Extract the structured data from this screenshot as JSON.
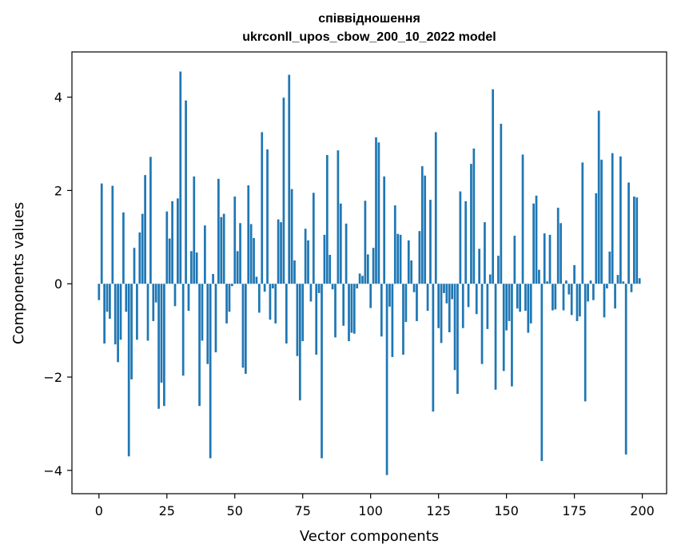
{
  "chart_data": {
    "type": "bar",
    "title_line1": "співвідношення",
    "title_line2": "ukrconll_upos_cbow_200_10_2022 model",
    "xlabel": "Vector components",
    "ylabel": "Components values",
    "xlim": [
      -9.95,
      208.95
    ],
    "ylim": [
      -4.5,
      4.97
    ],
    "xticks": [
      0,
      25,
      50,
      75,
      100,
      125,
      150,
      175,
      200
    ],
    "xtick_labels": [
      "0",
      "25",
      "50",
      "75",
      "100",
      "125",
      "150",
      "175",
      "200"
    ],
    "yticks": [
      -4,
      -2,
      0,
      2,
      4
    ],
    "ytick_labels": [
      "−4",
      "−2",
      "0",
      "2",
      "4"
    ],
    "bar_color": "#1f77b4",
    "x": [
      0,
      1,
      2,
      3,
      4,
      5,
      6,
      7,
      8,
      9,
      10,
      11,
      12,
      13,
      14,
      15,
      16,
      17,
      18,
      19,
      20,
      21,
      22,
      23,
      24,
      25,
      26,
      27,
      28,
      29,
      30,
      31,
      32,
      33,
      34,
      35,
      36,
      37,
      38,
      39,
      40,
      41,
      42,
      43,
      44,
      45,
      46,
      47,
      48,
      49,
      50,
      51,
      52,
      53,
      54,
      55,
      56,
      57,
      58,
      59,
      60,
      61,
      62,
      63,
      64,
      65,
      66,
      67,
      68,
      69,
      70,
      71,
      72,
      73,
      74,
      75,
      76,
      77,
      78,
      79,
      80,
      81,
      82,
      83,
      84,
      85,
      86,
      87,
      88,
      89,
      90,
      91,
      92,
      93,
      94,
      95,
      96,
      97,
      98,
      99,
      100,
      101,
      102,
      103,
      104,
      105,
      106,
      107,
      108,
      109,
      110,
      111,
      112,
      113,
      114,
      115,
      116,
      117,
      118,
      119,
      120,
      121,
      122,
      123,
      124,
      125,
      126,
      127,
      128,
      129,
      130,
      131,
      132,
      133,
      134,
      135,
      136,
      137,
      138,
      139,
      140,
      141,
      142,
      143,
      144,
      145,
      146,
      147,
      148,
      149,
      150,
      151,
      152,
      153,
      154,
      155,
      156,
      157,
      158,
      159,
      160,
      161,
      162,
      163,
      164,
      165,
      166,
      167,
      168,
      169,
      170,
      171,
      172,
      173,
      174,
      175,
      176,
      177,
      178,
      179,
      180,
      181,
      182,
      183,
      184,
      185,
      186,
      187,
      188,
      189,
      190,
      191,
      192,
      193,
      194,
      195,
      196,
      197,
      198,
      199
    ],
    "values": [
      -0.35,
      2.15,
      -1.28,
      -0.6,
      -0.75,
      2.1,
      -1.3,
      -1.68,
      -1.2,
      1.53,
      -0.6,
      -3.7,
      -2.05,
      0.77,
      -1.2,
      1.1,
      1.5,
      2.33,
      -1.22,
      2.72,
      -0.8,
      -0.4,
      -2.68,
      -2.12,
      -2.62,
      1.55,
      0.97,
      1.77,
      -0.48,
      1.83,
      4.55,
      -1.97,
      3.93,
      -0.58,
      0.7,
      2.3,
      0.67,
      -2.62,
      -1.22,
      1.25,
      -1.72,
      -3.74,
      0.21,
      -1.47,
      2.25,
      1.43,
      1.5,
      -0.85,
      -0.6,
      -0.05,
      1.87,
      0.7,
      1.3,
      -1.8,
      -1.93,
      2.11,
      1.28,
      0.98,
      0.15,
      -0.62,
      3.25,
      -0.17,
      2.88,
      -0.77,
      -0.1,
      -0.85,
      1.38,
      1.32,
      3.99,
      -1.28,
      4.48,
      2.03,
      0.5,
      -1.55,
      -2.5,
      -1.23,
      1.18,
      0.93,
      -0.38,
      1.95,
      -1.52,
      -0.2,
      -3.74,
      1.05,
      2.76,
      0.62,
      -0.12,
      -1.15,
      2.86,
      1.72,
      -0.9,
      1.29,
      -1.23,
      -1.05,
      -1.07,
      -0.1,
      0.22,
      0.17,
      1.78,
      0.63,
      -0.52,
      0.77,
      3.14,
      3.03,
      -1.13,
      2.3,
      -4.1,
      -0.49,
      -1.57,
      1.68,
      1.07,
      1.05,
      -1.52,
      -0.82,
      0.93,
      0.5,
      -0.18,
      -0.8,
      1.13,
      2.52,
      2.32,
      -0.58,
      1.8,
      -2.74,
      3.25,
      -0.95,
      -1.27,
      -0.2,
      -0.42,
      -1.04,
      -0.33,
      -1.85,
      -2.36,
      1.98,
      -0.95,
      1.77,
      -0.5,
      2.57,
      2.9,
      -0.65,
      0.75,
      -1.72,
      1.32,
      -0.97,
      0.2,
      4.17,
      -2.27,
      0.6,
      3.43,
      -1.87,
      -1.0,
      -0.8,
      -2.2,
      1.03,
      -0.53,
      -0.6,
      2.77,
      -0.58,
      -1.05,
      -0.85,
      1.72,
      1.89,
      0.3,
      -3.8,
      1.08,
      0.05,
      1.05,
      -0.57,
      -0.55,
      1.63,
      1.3,
      -0.57,
      0.07,
      -0.23,
      -0.67,
      0.4,
      -0.8,
      -0.7,
      2.6,
      -2.52,
      -0.38,
      0.07,
      -0.35,
      1.94,
      3.71,
      2.66,
      -0.72,
      -0.1,
      0.69,
      2.8,
      -0.53,
      0.19,
      2.73,
      0.05,
      -3.66,
      2.17,
      -0.18,
      1.87,
      1.85,
      0.12
    ]
  }
}
